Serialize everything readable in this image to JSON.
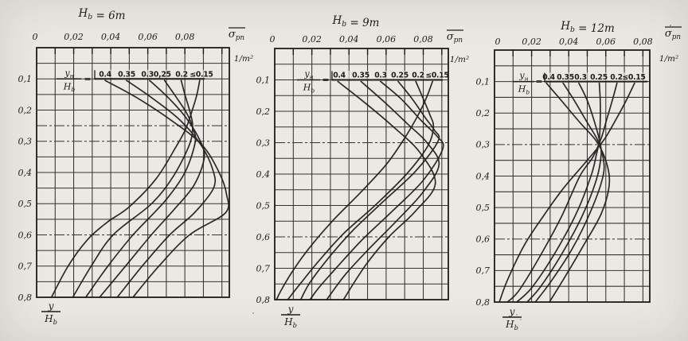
{
  "figure_type": "scanned line-chart figure: normalized lateral pressure distribution over relative bunker depth",
  "colors": {
    "paper": "#ebe9e4",
    "ink": "#1d1c1a",
    "grid": "#35332f"
  },
  "shared": {
    "sigma_symbol": "σ",
    "sigma_sub": "pn",
    "unit_label": "1/m²",
    "legend_num": "y",
    "legend_num_sub": "н",
    "legend_den": "H",
    "legend_den_sub": "b",
    "legend_eq": "=",
    "yaxis_num": "y",
    "yaxis_den": "H",
    "yaxis_den_sub": "b",
    "y_tick_labels": [
      "0,1",
      "0,2",
      "0,3",
      "0,4",
      "0,5",
      "0,6",
      "0,7",
      "0,8"
    ]
  },
  "panels": [
    {
      "title_base": "H",
      "title_sub": "b",
      "title_rest": " = 6m",
      "x_tick_labels": [
        "0",
        "0,02",
        "0,04",
        "0,06",
        "0,08"
      ],
      "legend_values": [
        "0.4",
        "0.35",
        "0.30,25",
        "0.2",
        "≤0.15"
      ]
    },
    {
      "title_base": "H",
      "title_sub": "b",
      "title_rest": " = 9m",
      "x_tick_labels": [
        "0",
        "0,02",
        "0,04",
        "0,06",
        "0,08"
      ],
      "legend_values": [
        "0.4",
        "0.35",
        "0.3",
        "0.25",
        "0.2",
        "≤0.15"
      ]
    },
    {
      "title_base": "H",
      "title_sub": "b",
      "title_rest": " = 12m",
      "x_tick_labels": [
        "0",
        "0,02",
        "0,04",
        "0,06",
        "0,08"
      ],
      "legend_values": [
        "0.4",
        "0.35",
        "0.3",
        "0.25",
        "0.2",
        "≤0.15"
      ]
    }
  ],
  "chart_data": [
    {
      "type": "line",
      "title": "Hb = 6 m",
      "xlabel": "σ̄pn, 1/m²",
      "ylabel": "y/Hb",
      "xlim": [
        0,
        0.104
      ],
      "ylim": [
        0,
        0.8
      ],
      "y_axis_direction": "inverted (depth downward)",
      "grid": "on, x step 0.01, y step 0.05",
      "x_ticks": [
        0,
        0.02,
        0.04,
        0.06,
        0.08
      ],
      "y_ticks": [
        0.1,
        0.2,
        0.3,
        0.4,
        0.5,
        0.6,
        0.7,
        0.8
      ],
      "legend_title": "yн/Hb =",
      "legend_position": "inside top, values row above the y=0.1 line",
      "series": [
        {
          "name": "0.4",
          "points": [
            [
              0.037,
              0.105
            ],
            [
              0.054,
              0.16
            ],
            [
              0.072,
              0.23
            ],
            [
              0.089,
              0.31
            ],
            [
              0.0985,
              0.4
            ],
            [
              0.1025,
              0.47
            ],
            [
              0.1018,
              0.53
            ],
            [
              0.0825,
              0.6
            ],
            [
              0.066,
              0.7
            ],
            [
              0.052,
              0.8
            ]
          ]
        },
        {
          "name": "0.35",
          "points": [
            [
              0.0485,
              0.105
            ],
            [
              0.062,
              0.16
            ],
            [
              0.077,
              0.23
            ],
            [
              0.0885,
              0.31
            ],
            [
              0.095,
              0.39
            ],
            [
              0.0955,
              0.45
            ],
            [
              0.085,
              0.53
            ],
            [
              0.0718,
              0.6
            ],
            [
              0.057,
              0.7
            ],
            [
              0.0435,
              0.8
            ]
          ]
        },
        {
          "name": "0.3",
          "points": [
            [
              0.061,
              0.105
            ],
            [
              0.071,
              0.16
            ],
            [
              0.08,
              0.22
            ],
            [
              0.0875,
              0.29
            ],
            [
              0.0905,
              0.35
            ],
            [
              0.085,
              0.44
            ],
            [
              0.074,
              0.52
            ],
            [
              0.0619,
              0.6
            ],
            [
              0.048,
              0.7
            ],
            [
              0.034,
              0.8
            ]
          ]
        },
        {
          "name": "0.25",
          "points": [
            [
              0.069,
              0.105
            ],
            [
              0.0755,
              0.16
            ],
            [
              0.081,
              0.21
            ],
            [
              0.0845,
              0.26
            ],
            [
              0.0855,
              0.305
            ],
            [
              0.08,
              0.4
            ],
            [
              0.0695,
              0.49
            ],
            [
              0.052,
              0.6
            ],
            [
              0.0385,
              0.7
            ],
            [
              0.0265,
              0.8
            ]
          ]
        },
        {
          "name": "0.2",
          "points": [
            [
              0.078,
              0.105
            ],
            [
              0.08,
              0.15
            ],
            [
              0.0825,
              0.2
            ],
            [
              0.0842,
              0.25
            ],
            [
              0.0825,
              0.31
            ],
            [
              0.074,
              0.41
            ],
            [
              0.062,
              0.5
            ],
            [
              0.0413,
              0.6
            ],
            [
              0.0295,
              0.7
            ],
            [
              0.0195,
              0.8
            ]
          ]
        },
        {
          "name": "≤0.15",
          "points": [
            [
              0.088,
              0.105
            ],
            [
              0.0865,
              0.15
            ],
            [
              0.084,
              0.2
            ],
            [
              0.0805,
              0.26
            ],
            [
              0.075,
              0.32
            ],
            [
              0.0645,
              0.42
            ],
            [
              0.05,
              0.51
            ],
            [
              0.038,
              0.56
            ],
            [
              0.0275,
              0.615
            ],
            [
              0.017,
              0.7
            ],
            [
              0.008,
              0.8
            ]
          ]
        }
      ]
    },
    {
      "type": "line",
      "title": "Hb = 9 m",
      "xlabel": "σ̄pn, 1/m²",
      "ylabel": "y/Hb",
      "xlim": [
        0,
        0.0935
      ],
      "ylim": [
        0,
        0.8
      ],
      "y_axis_direction": "inverted (depth downward)",
      "grid": "on, x step 0.01, y step 0.05",
      "x_ticks": [
        0,
        0.02,
        0.04,
        0.06,
        0.08
      ],
      "y_ticks": [
        0.1,
        0.2,
        0.3,
        0.4,
        0.5,
        0.6,
        0.7,
        0.8
      ],
      "legend_title": "yн/Hb =",
      "legend_position": "inside top, values row above the y=0.1 line",
      "series": [
        {
          "name": "0.4",
          "points": [
            [
              0.034,
              0.105
            ],
            [
              0.048,
              0.17
            ],
            [
              0.064,
              0.25
            ],
            [
              0.078,
              0.33
            ],
            [
              0.0865,
              0.43
            ],
            [
              0.0755,
              0.52
            ],
            [
              0.0615,
              0.6
            ],
            [
              0.049,
              0.69
            ],
            [
              0.037,
              0.8
            ]
          ]
        },
        {
          "name": "0.35",
          "points": [
            [
              0.0465,
              0.105
            ],
            [
              0.059,
              0.17
            ],
            [
              0.0715,
              0.24
            ],
            [
              0.082,
              0.3
            ],
            [
              0.0885,
              0.37
            ],
            [
              0.0795,
              0.46
            ],
            [
              0.0655,
              0.55
            ],
            [
              0.0505,
              0.64
            ],
            [
              0.038,
              0.72
            ],
            [
              0.028,
              0.8
            ]
          ]
        },
        {
          "name": "0.3",
          "points": [
            [
              0.057,
              0.105
            ],
            [
              0.068,
              0.16
            ],
            [
              0.079,
              0.23
            ],
            [
              0.0875,
              0.28
            ],
            [
              0.0905,
              0.32
            ],
            [
              0.08,
              0.42
            ],
            [
              0.063,
              0.52
            ],
            [
              0.047,
              0.61
            ],
            [
              0.033,
              0.7
            ],
            [
              0.024,
              0.76
            ],
            [
              0.019,
              0.8
            ]
          ]
        },
        {
          "name": "0.25",
          "points": [
            [
              0.0665,
              0.105
            ],
            [
              0.074,
              0.16
            ],
            [
              0.081,
              0.22
            ],
            [
              0.086,
              0.26
            ],
            [
              0.088,
              0.295
            ],
            [
              0.076,
              0.39
            ],
            [
              0.058,
              0.49
            ],
            [
              0.042,
              0.58
            ],
            [
              0.03,
              0.66
            ],
            [
              0.019,
              0.745
            ],
            [
              0.014,
              0.8
            ]
          ]
        },
        {
          "name": "0.2",
          "points": [
            [
              0.076,
              0.105
            ],
            [
              0.08,
              0.16
            ],
            [
              0.0835,
              0.21
            ],
            [
              0.0855,
              0.25
            ],
            [
              0.0825,
              0.31
            ],
            [
              0.071,
              0.4
            ],
            [
              0.054,
              0.5
            ],
            [
              0.037,
              0.59
            ],
            [
              0.024,
              0.675
            ],
            [
              0.013,
              0.755
            ],
            [
              0.007,
              0.8
            ]
          ]
        },
        {
          "name": "≤0.15",
          "points": [
            [
              0.085,
              0.105
            ],
            [
              0.0815,
              0.16
            ],
            [
              0.0765,
              0.22
            ],
            [
              0.0695,
              0.29
            ],
            [
              0.06,
              0.37
            ],
            [
              0.046,
              0.46
            ],
            [
              0.031,
              0.55
            ],
            [
              0.018,
              0.64
            ],
            [
              0.009,
              0.715
            ],
            [
              0.003,
              0.775
            ],
            [
              0.001,
              0.8
            ]
          ]
        }
      ]
    },
    {
      "type": "line",
      "title": "Hb = 12 m",
      "xlabel": "σ̄pn, 1/m²",
      "ylabel": "y/Hb",
      "xlim": [
        0,
        0.0837
      ],
      "ylim": [
        0,
        0.8
      ],
      "y_axis_direction": "inverted (depth downward)",
      "grid": "on, x step 0.01, y step 0.05",
      "x_ticks": [
        0,
        0.02,
        0.04,
        0.06,
        0.08
      ],
      "y_ticks": [
        0.1,
        0.2,
        0.3,
        0.4,
        0.5,
        0.6,
        0.7,
        0.8
      ],
      "legend_title": "yн/Hb =",
      "legend_position": "inside top, values row above the y=0.1 line",
      "series": [
        {
          "name": "0.4",
          "points": [
            [
              0.028,
              0.105
            ],
            [
              0.036,
              0.16
            ],
            [
              0.046,
              0.23
            ],
            [
              0.055,
              0.29
            ],
            [
              0.0605,
              0.36
            ],
            [
              0.0618,
              0.43
            ],
            [
              0.0575,
              0.52
            ],
            [
              0.048,
              0.62
            ],
            [
              0.038,
              0.72
            ],
            [
              0.0296,
              0.8
            ]
          ]
        },
        {
          "name": "0.35",
          "points": [
            [
              0.037,
              0.105
            ],
            [
              0.043,
              0.16
            ],
            [
              0.05,
              0.23
            ],
            [
              0.0555,
              0.285
            ],
            [
              0.0585,
              0.34
            ],
            [
              0.0585,
              0.4
            ],
            [
              0.052,
              0.51
            ],
            [
              0.042,
              0.63
            ],
            [
              0.031,
              0.73
            ],
            [
              0.022,
              0.8
            ]
          ]
        },
        {
          "name": "0.3",
          "points": [
            [
              0.0455,
              0.105
            ],
            [
              0.05,
              0.16
            ],
            [
              0.054,
              0.23
            ],
            [
              0.0565,
              0.285
            ],
            [
              0.0575,
              0.33
            ],
            [
              0.055,
              0.41
            ],
            [
              0.047,
              0.53
            ],
            [
              0.036,
              0.65
            ],
            [
              0.025,
              0.75
            ],
            [
              0.0176,
              0.8
            ]
          ]
        },
        {
          "name": "0.25",
          "points": [
            [
              0.0565,
              0.105
            ],
            [
              0.057,
              0.16
            ],
            [
              0.057,
              0.22
            ],
            [
              0.0565,
              0.285
            ],
            [
              0.055,
              0.33
            ],
            [
              0.052,
              0.4
            ],
            [
              0.044,
              0.52
            ],
            [
              0.032,
              0.65
            ],
            [
              0.02,
              0.755
            ],
            [
              0.012,
              0.8
            ]
          ]
        },
        {
          "name": "0.2",
          "points": [
            [
              0.066,
              0.105
            ],
            [
              0.0635,
              0.16
            ],
            [
              0.0605,
              0.22
            ],
            [
              0.0575,
              0.28
            ],
            [
              0.053,
              0.34
            ],
            [
              0.046,
              0.4
            ],
            [
              0.036,
              0.53
            ],
            [
              0.024,
              0.66
            ],
            [
              0.013,
              0.765
            ],
            [
              0.0069,
              0.8
            ]
          ]
        },
        {
          "name": "≤0.15",
          "points": [
            [
              0.0755,
              0.105
            ],
            [
              0.071,
              0.16
            ],
            [
              0.0655,
              0.22
            ],
            [
              0.059,
              0.285
            ],
            [
              0.05,
              0.35
            ],
            [
              0.037,
              0.44
            ],
            [
              0.026,
              0.53
            ],
            [
              0.016,
              0.62
            ],
            [
              0.007,
              0.73
            ],
            [
              0.0026,
              0.8
            ]
          ]
        }
      ]
    }
  ]
}
